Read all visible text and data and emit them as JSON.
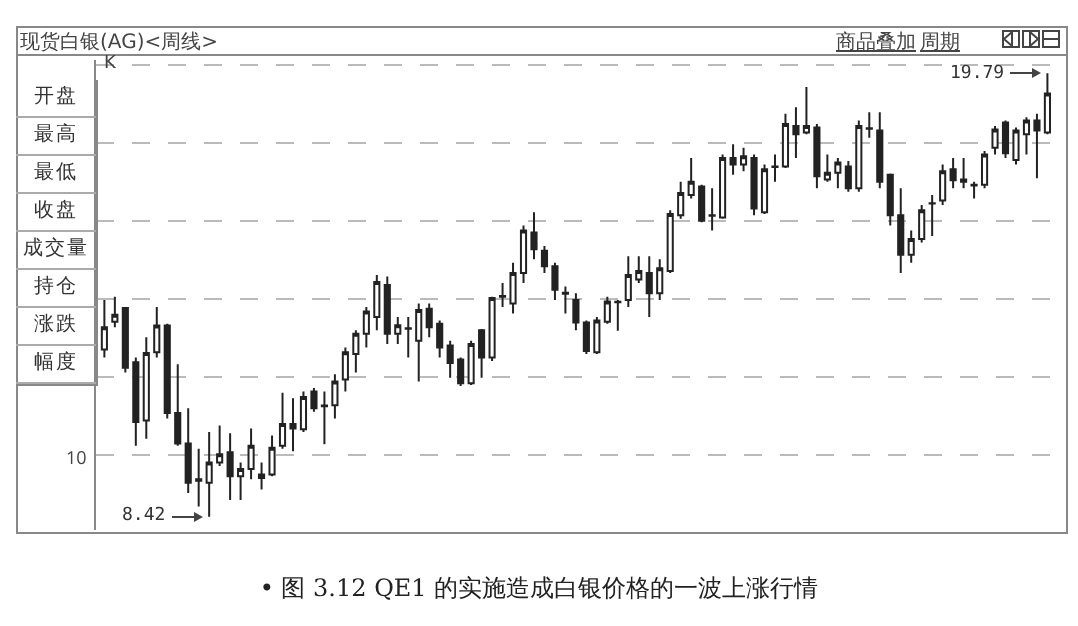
{
  "chart_data": {
    "type": "candlestick",
    "title": "现货白银(AG)<周线>",
    "annotations": [
      "K",
      "开盘",
      "最高",
      "最低",
      "收盘",
      "成交量",
      "持仓",
      "涨跌",
      "幅度",
      "商品叠加",
      "周期",
      "8.42",
      "19.79",
      "10",
      "• 图 3.12 QE1 的实施造成白银价格的一波上涨行情"
    ],
    "categories": [
      null,
      null,
      null,
      null,
      null,
      null,
      null,
      null,
      null,
      null,
      null,
      null,
      null,
      null,
      null,
      null,
      null,
      null,
      null,
      null,
      null,
      null,
      null,
      null,
      null,
      null,
      null,
      null,
      null,
      null,
      null,
      null,
      null,
      null,
      null,
      null,
      null,
      null,
      null,
      null,
      null,
      null,
      null,
      null,
      null,
      null,
      null,
      null,
      null,
      null,
      null,
      null,
      null,
      null,
      null,
      null,
      null,
      null,
      null,
      null,
      null,
      null,
      null,
      null,
      null,
      null,
      null,
      null,
      null,
      null,
      null,
      null,
      null,
      null,
      null,
      null,
      null,
      null,
      null,
      null,
      null,
      null,
      null,
      null,
      null,
      null,
      null,
      null,
      null,
      null,
      null
    ],
    "ohlc": [
      [
        12.71,
        13.98,
        12.5,
        13.28
      ],
      [
        13.42,
        14.06,
        13.28,
        13.6
      ],
      [
        13.77,
        13.8,
        12.12,
        12.24
      ],
      [
        12.38,
        12.5,
        10.24,
        10.85
      ],
      [
        10.89,
        13.02,
        10.42,
        12.62
      ],
      [
        12.64,
        13.8,
        12.5,
        13.32
      ],
      [
        13.32,
        13.37,
        10.94,
        11.08
      ],
      [
        11.08,
        12.33,
        10.24,
        10.3
      ],
      [
        10.3,
        11.2,
        9.03,
        9.29
      ],
      [
        9.38,
        10.16,
        8.68,
        9.34
      ],
      [
        9.29,
        10.59,
        8.42,
        9.81
      ],
      [
        9.81,
        10.76,
        9.72,
        10.02
      ],
      [
        10.07,
        10.56,
        8.85,
        9.46
      ],
      [
        9.46,
        9.81,
        8.85,
        9.64
      ],
      [
        9.64,
        10.68,
        9.38,
        10.24
      ],
      [
        9.41,
        9.81,
        9.12,
        9.5
      ],
      [
        9.5,
        10.5,
        9.46,
        10.19
      ],
      [
        10.24,
        11.6,
        10.16,
        10.8
      ],
      [
        10.8,
        11.46,
        10.1,
        10.68
      ],
      [
        10.66,
        11.63,
        10.59,
        11.49
      ],
      [
        11.63,
        11.72,
        11.11,
        11.2
      ],
      [
        11.25,
        11.63,
        10.28,
        11.27
      ],
      [
        11.28,
        12.07,
        10.94,
        11.89
      ],
      [
        11.94,
        12.76,
        11.63,
        12.64
      ],
      [
        12.59,
        13.2,
        12.12,
        13.11
      ],
      [
        13.11,
        13.8,
        12.76,
        13.68
      ],
      [
        13.54,
        14.62,
        13.2,
        14.44
      ],
      [
        14.36,
        14.58,
        12.85,
        13.11
      ],
      [
        13.11,
        13.54,
        12.85,
        13.33
      ],
      [
        13.24,
        13.54,
        12.5,
        13.25
      ],
      [
        12.93,
        13.89,
        11.89,
        13.72
      ],
      [
        13.75,
        13.89,
        13.02,
        13.28
      ],
      [
        13.37,
        13.45,
        12.5,
        12.76
      ],
      [
        12.81,
        12.93,
        11.98,
        12.36
      ],
      [
        12.45,
        12.5,
        11.77,
        11.84
      ],
      [
        11.84,
        12.93,
        11.8,
        12.85
      ],
      [
        13.2,
        13.23,
        11.98,
        12.5
      ],
      [
        12.5,
        14.06,
        12.41,
        14.03
      ],
      [
        14.06,
        14.41,
        13.8,
        14.08
      ],
      [
        13.89,
        14.93,
        13.63,
        14.67
      ],
      [
        14.67,
        15.89,
        14.41,
        15.76
      ],
      [
        15.71,
        16.23,
        15.02,
        15.28
      ],
      [
        15.24,
        15.36,
        14.67,
        14.84
      ],
      [
        14.84,
        14.93,
        13.98,
        14.24
      ],
      [
        14.16,
        14.32,
        13.63,
        14.14
      ],
      [
        13.98,
        14.15,
        13.2,
        13.4
      ],
      [
        13.4,
        13.45,
        12.59,
        12.67
      ],
      [
        12.64,
        13.54,
        12.59,
        13.45
      ],
      [
        13.42,
        14.06,
        13.37,
        13.94
      ],
      [
        13.92,
        13.98,
        13.19,
        13.93
      ],
      [
        13.98,
        15.1,
        13.8,
        14.62
      ],
      [
        14.5,
        15.1,
        14.41,
        14.72
      ],
      [
        14.67,
        15.1,
        13.54,
        14.15
      ],
      [
        14.15,
        15.02,
        13.98,
        14.79
      ],
      [
        14.72,
        16.28,
        14.67,
        16.18
      ],
      [
        16.15,
        17.01,
        16.06,
        16.72
      ],
      [
        16.67,
        17.62,
        16.58,
        17.01
      ],
      [
        16.89,
        16.93,
        15.97,
        16.01
      ],
      [
        16.15,
        16.84,
        15.76,
        16.14
      ],
      [
        16.09,
        17.71,
        16.06,
        17.62
      ],
      [
        17.62,
        17.97,
        17.19,
        17.45
      ],
      [
        17.45,
        17.88,
        17.28,
        17.66
      ],
      [
        17.62,
        17.71,
        16.15,
        16.32
      ],
      [
        16.23,
        17.45,
        16.18,
        17.33
      ],
      [
        17.39,
        17.71,
        17.01,
        17.4
      ],
      [
        17.4,
        18.75,
        17.36,
        18.49
      ],
      [
        18.44,
        18.92,
        17.62,
        18.23
      ],
      [
        18.27,
        19.44,
        18.23,
        18.44
      ],
      [
        18.4,
        18.49,
        16.84,
        17.15
      ],
      [
        17.07,
        17.71,
        17.01,
        17.24
      ],
      [
        17.24,
        17.62,
        16.84,
        17.5
      ],
      [
        17.4,
        17.54,
        16.75,
        16.84
      ],
      [
        16.84,
        18.58,
        16.75,
        18.44
      ],
      [
        18.37,
        18.79,
        18.14,
        18.38
      ],
      [
        18.32,
        18.79,
        16.84,
        17.01
      ],
      [
        17.19,
        17.22,
        15.89,
        16.15
      ],
      [
        16.15,
        16.84,
        14.67,
        15.14
      ],
      [
        15.14,
        15.76,
        14.93,
        15.54
      ],
      [
        15.54,
        16.41,
        15.45,
        16.28
      ],
      [
        16.45,
        16.67,
        15.62,
        16.46
      ],
      [
        16.53,
        17.45,
        16.41,
        17.28
      ],
      [
        17.33,
        17.62,
        16.84,
        17.05
      ],
      [
        17.07,
        17.62,
        16.84,
        17.01
      ],
      [
        16.93,
        17.01,
        16.58,
        16.91
      ],
      [
        16.93,
        17.8,
        16.84,
        17.71
      ],
      [
        17.88,
        18.44,
        17.71,
        18.35
      ],
      [
        18.53,
        18.58,
        17.62,
        17.74
      ],
      [
        17.57,
        18.4,
        17.45,
        18.32
      ],
      [
        18.23,
        18.66,
        17.71,
        18.58
      ],
      [
        18.58,
        18.75,
        17.1,
        18.32
      ],
      [
        18.27,
        19.79,
        18.23,
        19.27
      ]
    ],
    "color": "#222222",
    "grid": "y",
    "tick_labels": false
  }
}
